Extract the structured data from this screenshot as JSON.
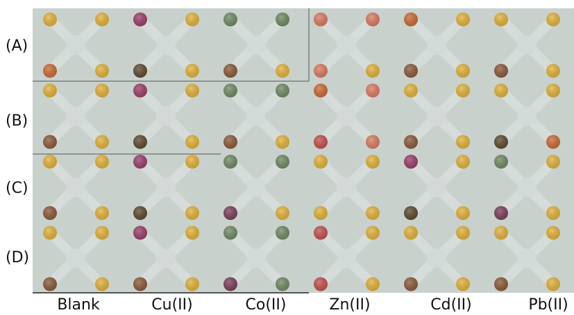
{
  "row_labels": [
    "(A)",
    "(B)",
    "(C)",
    "(D)"
  ],
  "column_labels": [
    "Blank",
    "Cu(II)",
    "Co(II)",
    "Zn(II)",
    "Cd(II)",
    "Pb(II)"
  ]
}
